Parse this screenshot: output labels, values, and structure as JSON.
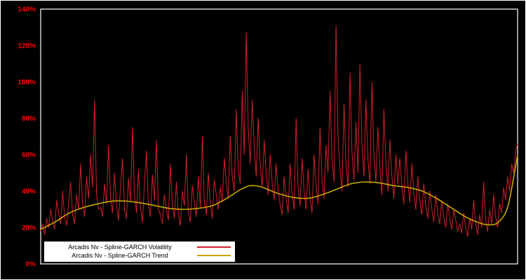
{
  "chart_data": {
    "type": "line",
    "title": "",
    "xlabel": "",
    "ylabel": "",
    "ylim": [
      0,
      140
    ],
    "grid": false,
    "legend_position": "bottom-left",
    "yticks": [
      {
        "value": 0,
        "label": "0%"
      },
      {
        "value": 20,
        "label": "20%"
      },
      {
        "value": 40,
        "label": "40%"
      },
      {
        "value": 60,
        "label": "60%"
      },
      {
        "value": 80,
        "label": "80%"
      },
      {
        "value": 100,
        "label": "100%"
      },
      {
        "value": 120,
        "label": "120%"
      },
      {
        "value": 140,
        "label": "140%"
      }
    ],
    "colors": {
      "volatility": "#d21f2c",
      "trend": "#c7a500",
      "tick_labels": "#ff0000",
      "plot_border": "#ffffff",
      "background": "#000000",
      "legend_background": "#ffffff",
      "legend_text": "#000000"
    },
    "volatility": {
      "name": "Arcadis Nv - Spline-GARCH Volatility",
      "unit": "%",
      "values": [
        18,
        22,
        16,
        25,
        20,
        30,
        24,
        19,
        35,
        28,
        22,
        40,
        26,
        21,
        33,
        45,
        27,
        22,
        38,
        30,
        55,
        33,
        26,
        48,
        36,
        60,
        42,
        90,
        38,
        30,
        31,
        26,
        44,
        33,
        65,
        36,
        28,
        50,
        32,
        24,
        42,
        58,
        30,
        25,
        47,
        34,
        75,
        38,
        28,
        52,
        31,
        23,
        44,
        62,
        33,
        26,
        49,
        35,
        68,
        30,
        27,
        22,
        38,
        30,
        24,
        55,
        33,
        25,
        45,
        28,
        21,
        40,
        32,
        60,
        29,
        23,
        43,
        34,
        26,
        48,
        31,
        70,
        35,
        27,
        50,
        33,
        25,
        46,
        38,
        30,
        42,
        34,
        58,
        45,
        36,
        70,
        48,
        40,
        85,
        52,
        44,
        95,
        60,
        127,
        75,
        55,
        90,
        65,
        48,
        80,
        55,
        42,
        68,
        50,
        38,
        60,
        45,
        35,
        55,
        40,
        33,
        27,
        48,
        36,
        28,
        55,
        38,
        30,
        80,
        42,
        32,
        58,
        40,
        30,
        52,
        36,
        28,
        60,
        43,
        33,
        75,
        46,
        36,
        65,
        50,
        95,
        58,
        45,
        131,
        70,
        52,
        40,
        88,
        55,
        42,
        105,
        62,
        46,
        78,
        50,
        110,
        65,
        48,
        90,
        58,
        44,
        100,
        60,
        45,
        75,
        52,
        38,
        85,
        55,
        40,
        68,
        48,
        36,
        60,
        44,
        58,
        42,
        33,
        62,
        44,
        34,
        55,
        38,
        30,
        48,
        35,
        27,
        44,
        32,
        25,
        40,
        30,
        23,
        38,
        28,
        22,
        35,
        26,
        20,
        33,
        25,
        19,
        30,
        24,
        18,
        22,
        17,
        28,
        20,
        15,
        25,
        19,
        35,
        22,
        16,
        27,
        20,
        45,
        24,
        18,
        30,
        22,
        38,
        26,
        20,
        33,
        28,
        42,
        35,
        48,
        40,
        55,
        50,
        62,
        66
      ]
    },
    "trend": {
      "name": "Arcadis Nv - Spline-GARCH Trend",
      "unit": "%",
      "points": [
        [
          0.0,
          19
        ],
        [
          0.03,
          23
        ],
        [
          0.06,
          28
        ],
        [
          0.09,
          31
        ],
        [
          0.12,
          33
        ],
        [
          0.15,
          34.5
        ],
        [
          0.18,
          34.5
        ],
        [
          0.21,
          33.5
        ],
        [
          0.24,
          32
        ],
        [
          0.27,
          30.5
        ],
        [
          0.3,
          30
        ],
        [
          0.33,
          30.5
        ],
        [
          0.36,
          32
        ],
        [
          0.39,
          36
        ],
        [
          0.42,
          41
        ],
        [
          0.44,
          43
        ],
        [
          0.46,
          42.5
        ],
        [
          0.48,
          40.5
        ],
        [
          0.5,
          38.5
        ],
        [
          0.53,
          36.5
        ],
        [
          0.56,
          36
        ],
        [
          0.59,
          38
        ],
        [
          0.62,
          41
        ],
        [
          0.65,
          44
        ],
        [
          0.68,
          45
        ],
        [
          0.71,
          44.5
        ],
        [
          0.74,
          43
        ],
        [
          0.77,
          42
        ],
        [
          0.8,
          40
        ],
        [
          0.83,
          36
        ],
        [
          0.86,
          31
        ],
        [
          0.89,
          26
        ],
        [
          0.92,
          22.5
        ],
        [
          0.94,
          21.5
        ],
        [
          0.96,
          23
        ],
        [
          0.98,
          32
        ],
        [
          1.0,
          60
        ]
      ]
    }
  }
}
